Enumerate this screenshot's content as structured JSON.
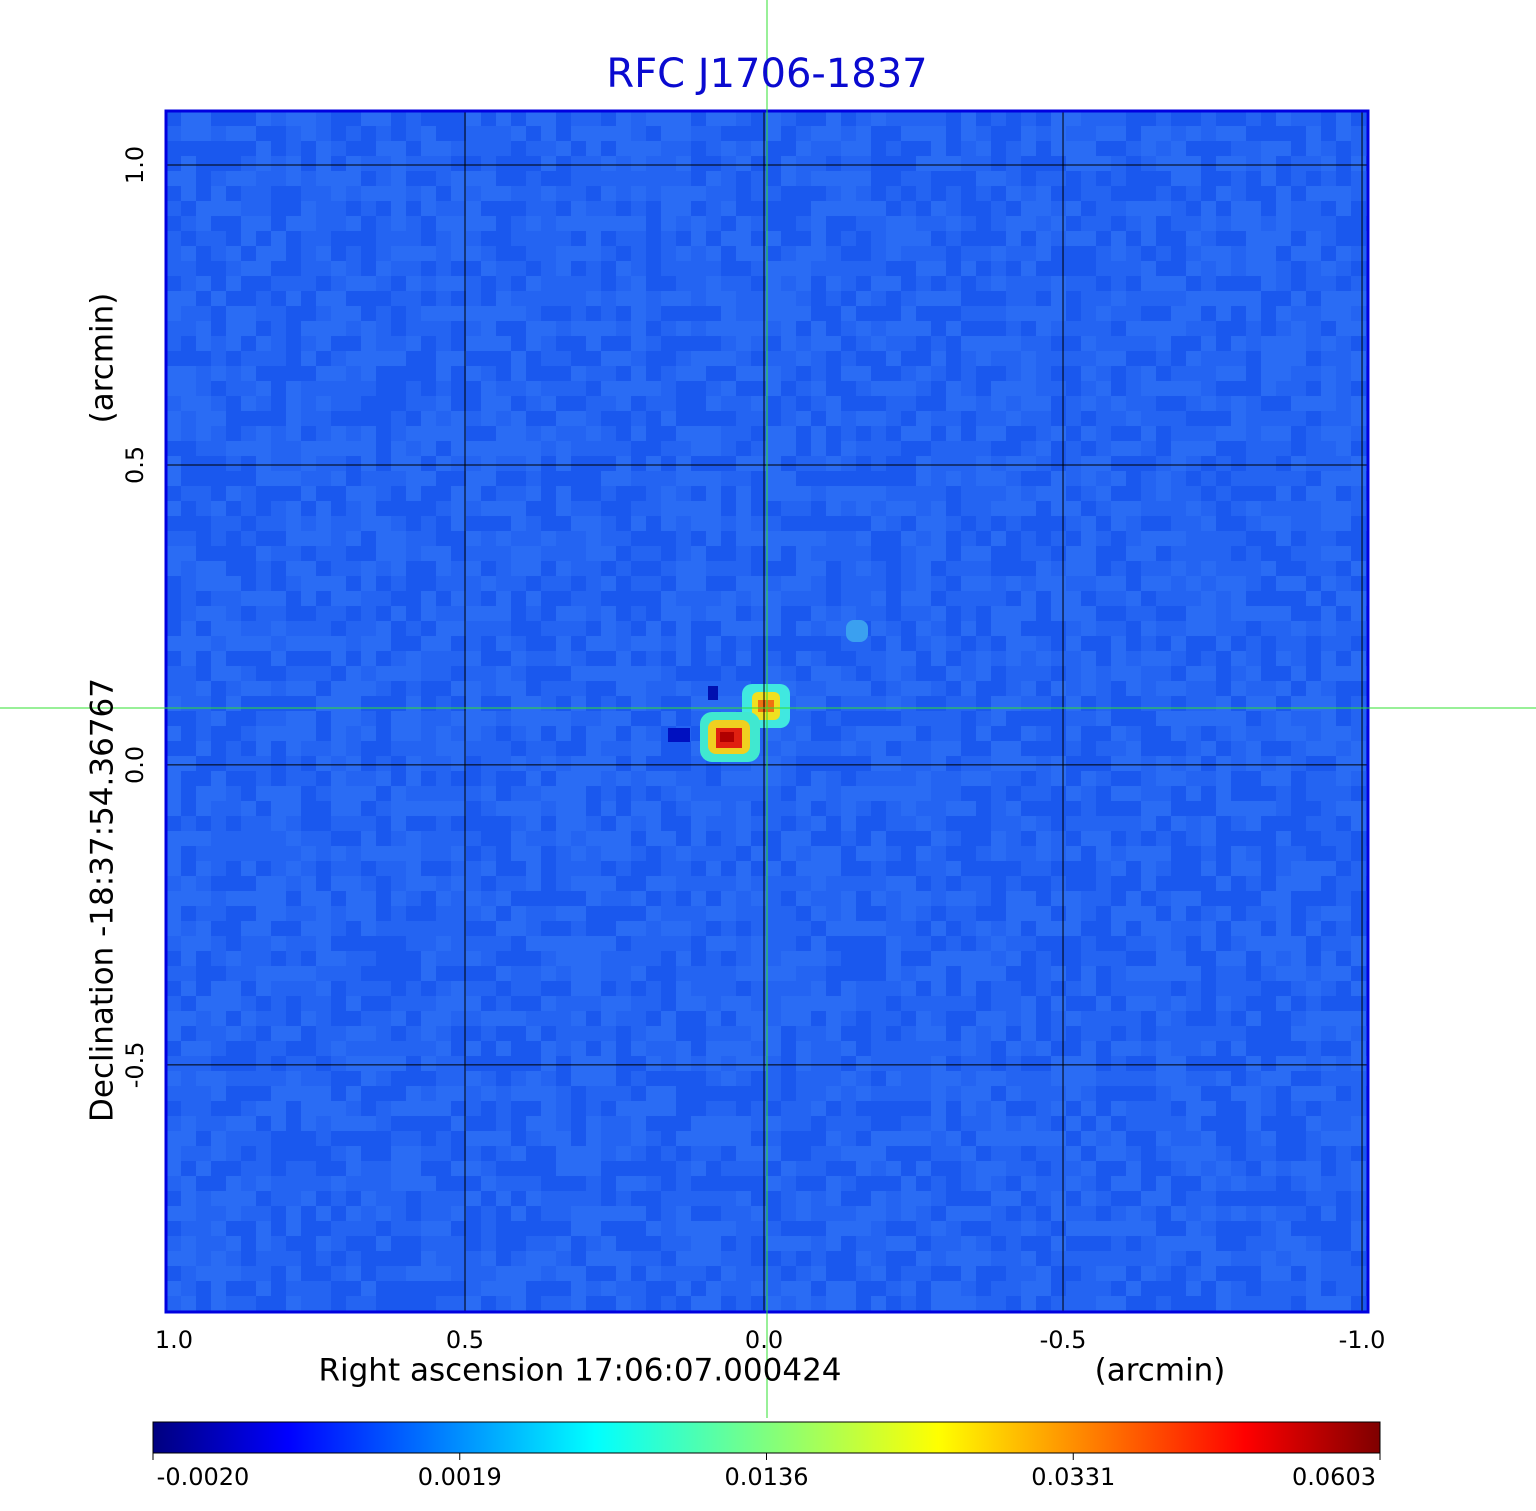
{
  "chart_data": {
    "type": "image",
    "title": "RFC J1706-1837",
    "xlabel": "Right ascension  17:06:07.000424",
    "xunit": "(arcmin)",
    "ylabel": "Declination  -18:37:54.36767",
    "yunit": "(arcmin)",
    "xlim": [
      1.0,
      -1.01
    ],
    "ylim": [
      -0.912,
      1.09
    ],
    "xticks": [
      {
        "value": 1,
        "label": "1.0"
      },
      0.5,
      {
        "value": 0,
        "label": "0.0"
      },
      -0.5,
      {
        "value": -1,
        "label": "-1.0"
      }
    ],
    "yticks": [
      {
        "value": 1,
        "label": "1.0"
      },
      0.5,
      {
        "value": 0,
        "label": "0.0"
      },
      -0.5
    ],
    "grid": true,
    "colormap": "jet",
    "colorbar_ticks": [
      {
        "value": -0.002,
        "label": "-0.0020"
      },
      0.0019,
      0.0136,
      0.0331,
      0.0603
    ]
  }
}
